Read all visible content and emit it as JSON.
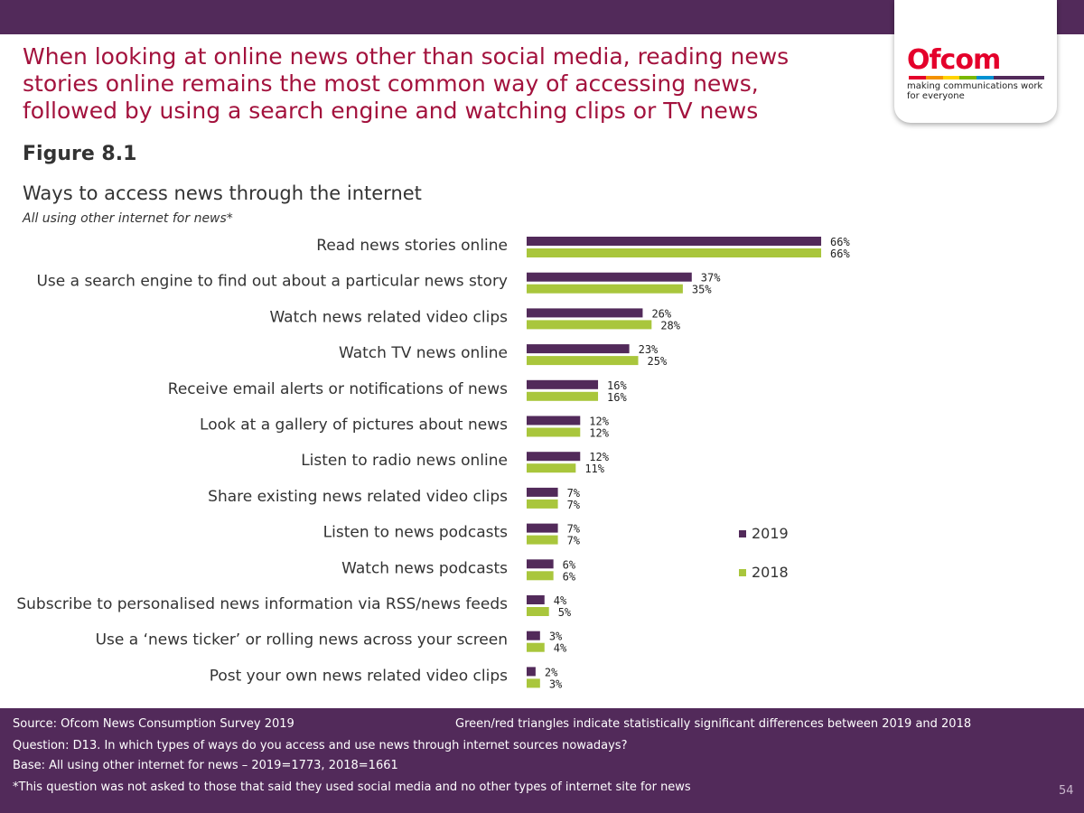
{
  "headline": "When looking at online news other than social media, reading news stories online remains the most common way of accessing news, followed by using a search engine and watching clips or TV news",
  "figure_label": "Figure 8.1",
  "logo": {
    "wordmark": "Ofcom",
    "tagline": "making communications work for everyone"
  },
  "colors": {
    "purple": "#522a5a",
    "green": "#a9c63c",
    "headline": "#a3123d"
  },
  "chart_data": {
    "type": "bar",
    "orientation": "horizontal",
    "title": "Ways to access news through the internet",
    "subtitle": "All using other internet for news*",
    "categories": [
      "Read news stories online",
      "Use a search engine to find out about a particular news story",
      "Watch news related video clips",
      "Watch TV news online",
      "Receive email alerts or notifications of news",
      "Look at a gallery of pictures about news",
      "Listen to radio news online",
      "Share existing news related video clips",
      "Listen to news podcasts",
      "Watch news podcasts",
      "Subscribe to personalised news information via RSS/news feeds",
      "Use a ‘news ticker’ or rolling news across your screen",
      "Post your own news related video clips"
    ],
    "series": [
      {
        "name": "2019",
        "color": "#522a5a",
        "values": [
          66,
          37,
          26,
          23,
          16,
          12,
          12,
          7,
          7,
          6,
          4,
          3,
          2
        ]
      },
      {
        "name": "2018",
        "color": "#a9c63c",
        "values": [
          66,
          35,
          28,
          25,
          16,
          12,
          11,
          7,
          7,
          6,
          5,
          4,
          3
        ]
      }
    ],
    "value_suffix": "%",
    "xlim": [
      0,
      100
    ],
    "legend": "right",
    "grid": false
  },
  "footer": {
    "source": "Source: Ofcom News Consumption Survey 2019",
    "note": "Green/red triangles indicate statistically significant differences between 2019 and 2018",
    "question": "Question: D13. In which types of ways do you access and use news through internet sources nowadays?",
    "base": "Base: All using other internet for news – 2019=1773, 2018=1661",
    "asterisk": "*This question was not asked to those that said they used social media and no other types of internet site for news",
    "page_number": "54"
  }
}
